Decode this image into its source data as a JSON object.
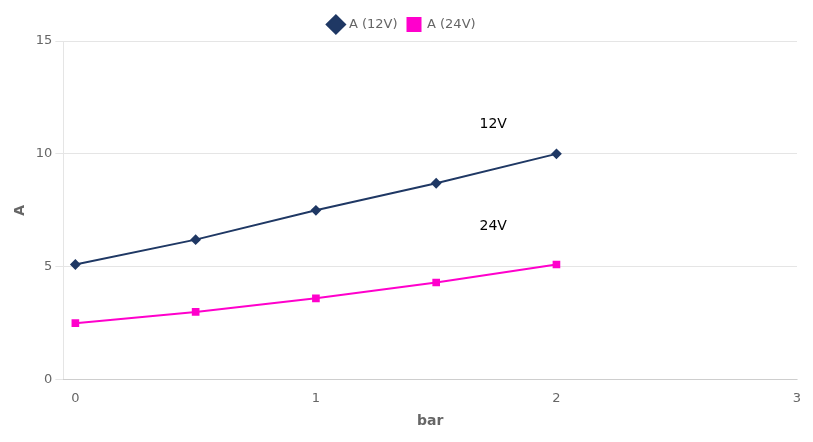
{
  "chart_data": {
    "type": "line",
    "x": [
      0,
      0.5,
      1.0,
      1.5,
      2.0
    ],
    "series": [
      {
        "name": "A (12V)",
        "color": "#1f3864",
        "marker": "diamond",
        "values": [
          5.1,
          6.2,
          7.5,
          8.7,
          10.0
        ]
      },
      {
        "name": "A (24V)",
        "color": "#ff00cc",
        "marker": "square",
        "values": [
          2.5,
          3.0,
          3.6,
          4.3,
          5.1
        ]
      }
    ],
    "x_label": "bar",
    "y_label": "A",
    "xlim": [
      -0.05,
      3.0
    ],
    "xticks": [
      0,
      1,
      2,
      3
    ],
    "ylim": [
      0,
      15
    ],
    "yticks": [
      0,
      5,
      10,
      15
    ],
    "grid": "y",
    "legend": "top",
    "annotations": [
      {
        "text": "12V",
        "x": 1.68,
        "y": 11.0
      },
      {
        "text": "24V",
        "x": 1.68,
        "y": 6.5
      }
    ]
  }
}
